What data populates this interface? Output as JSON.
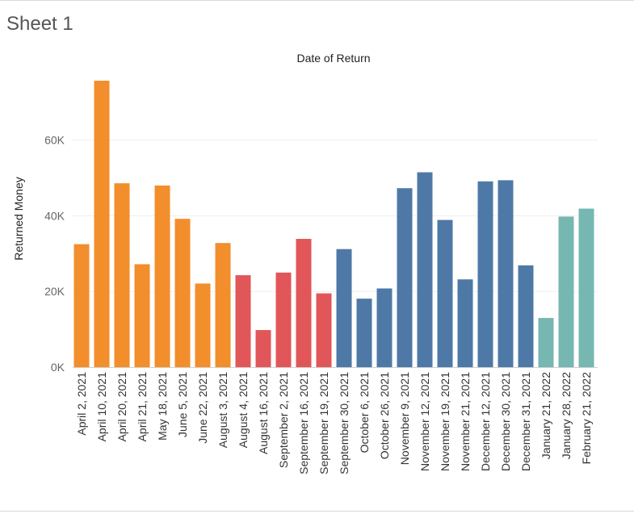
{
  "sheet": {
    "title": "Sheet 1"
  },
  "chart_data": {
    "type": "bar",
    "title": "Date of Return",
    "xlabel": "",
    "ylabel": "Returned Money",
    "ylim": [
      0,
      80000
    ],
    "yticks": [
      0,
      20000,
      40000,
      60000
    ],
    "ytick_labels": [
      "0K",
      "20K",
      "40K",
      "60K"
    ],
    "grid": true,
    "categories": [
      "April 2, 2021",
      "April 10, 2021",
      "April 20, 2021",
      "April 21, 2021",
      "May 18, 2021",
      "June 5, 2021",
      "June 22, 2021",
      "August 3, 2021",
      "August 4, 2021",
      "August 16, 2021",
      "September 2, 2021",
      "September 16, 2021",
      "September 19, 2021",
      "September 30, 2021",
      "October 6, 2021",
      "October 26, 2021",
      "November 9, 2021",
      "November 12, 2021",
      "November 19, 2021",
      "November 21, 2021",
      "December 12, 2021",
      "December 30, 2021",
      "December 31, 2021",
      "January 21, 2022",
      "January 28, 2022",
      "February 21, 2022"
    ],
    "values": [
      32500,
      75700,
      48600,
      27200,
      48000,
      39200,
      22100,
      32800,
      24300,
      9800,
      25000,
      33900,
      19500,
      31200,
      18100,
      20800,
      47300,
      51500,
      38900,
      23200,
      49100,
      49400,
      26900,
      13000,
      39800,
      41900
    ],
    "bar_colors": [
      "#f28e2b",
      "#f28e2b",
      "#f28e2b",
      "#f28e2b",
      "#f28e2b",
      "#f28e2b",
      "#f28e2b",
      "#f28e2b",
      "#e15759",
      "#e15759",
      "#e15759",
      "#e15759",
      "#e15759",
      "#4e79a7",
      "#4e79a7",
      "#4e79a7",
      "#4e79a7",
      "#4e79a7",
      "#4e79a7",
      "#4e79a7",
      "#4e79a7",
      "#4e79a7",
      "#4e79a7",
      "#76b7b2",
      "#76b7b2",
      "#76b7b2"
    ],
    "gridline_color": "#efefef",
    "axis_color": "#d0d0d0"
  }
}
